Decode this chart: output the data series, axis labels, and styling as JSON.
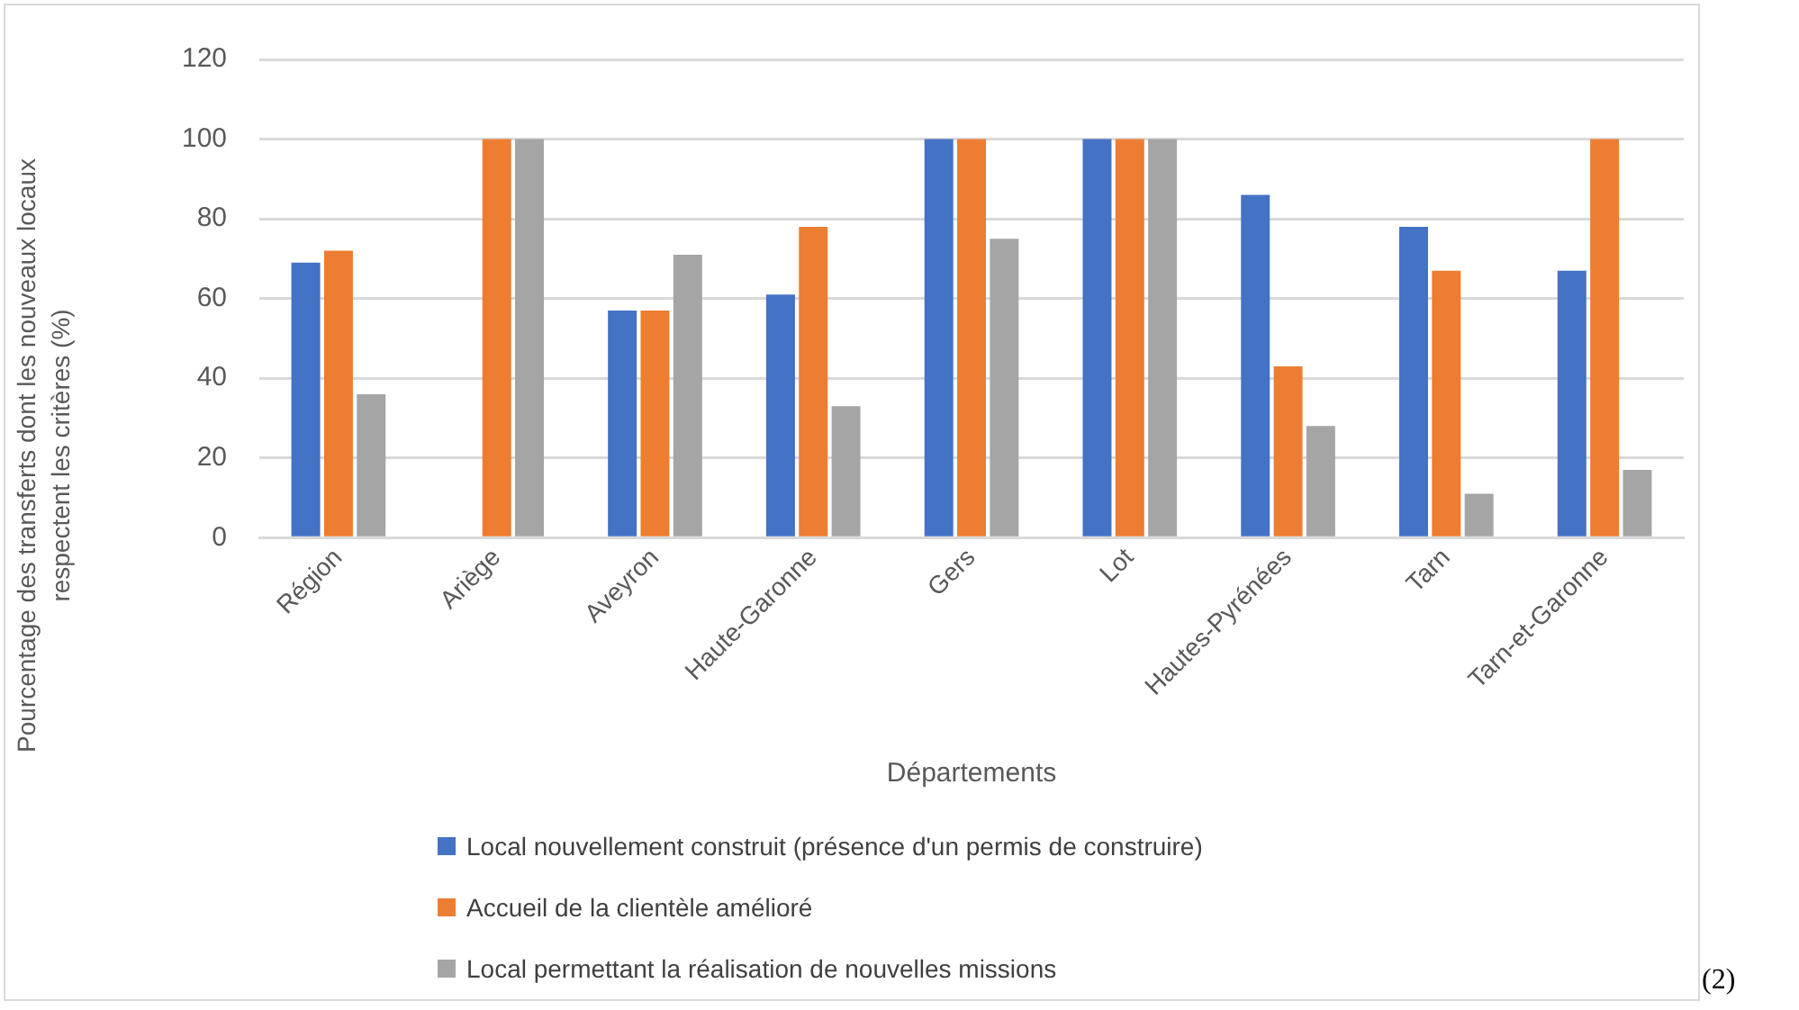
{
  "chart_data": {
    "type": "bar",
    "xlabel": "Départements",
    "ylabel": "Pourcentage des transferts dont les nouveaux locaux\nrespectent les critères (%)",
    "categories": [
      "Région",
      "Ariège",
      "Aveyron",
      "Haute-Garonne",
      "Gers",
      "Lot",
      "Hautes-Pyrénées",
      "Tarn",
      "Tarn-et-Garonne"
    ],
    "series": [
      {
        "name": "Local nouvellement construit (présence d'un permis de construire)",
        "color": "#4472c4",
        "values": [
          69,
          0,
          57,
          61,
          100,
          100,
          86,
          78,
          67
        ]
      },
      {
        "name": "Accueil de la clientèle amélioré",
        "color": "#ed7d31",
        "values": [
          72,
          100,
          57,
          78,
          100,
          100,
          43,
          67,
          100
        ]
      },
      {
        "name": "Local permettant la réalisation de nouvelles missions",
        "color": "#a5a5a5",
        "values": [
          36,
          100,
          71,
          33,
          75,
          100,
          28,
          11,
          17
        ]
      }
    ],
    "ylim": [
      0,
      120
    ],
    "yticks": [
      0,
      20,
      40,
      60,
      80,
      100,
      120
    ],
    "grid": "y",
    "legend": "bottom",
    "annotations": [
      "(2)"
    ]
  }
}
